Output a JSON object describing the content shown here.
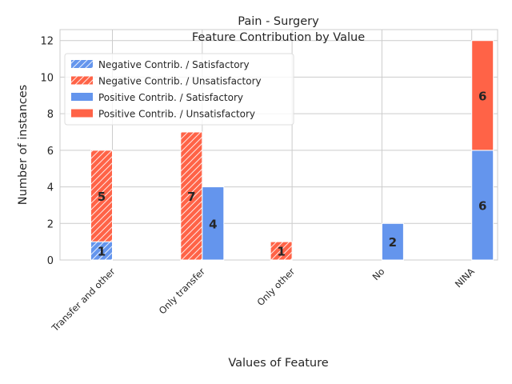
{
  "chart_data": {
    "type": "bar",
    "title": "Pain - Surgery",
    "subtitle": "Feature Contribution by Value",
    "xlabel": "Values of Feature",
    "ylabel": "Number of instances",
    "ylim": [
      0,
      12.6
    ],
    "yticks": [
      0,
      2,
      4,
      6,
      8,
      10,
      12
    ],
    "grid": true,
    "legend_position": "top-left",
    "categories": [
      "Transfer and other",
      "Only transfer",
      "Only other",
      "No",
      "NINA"
    ],
    "series": [
      {
        "name": "Negative Contrib. / Satisfactory",
        "group": "negative",
        "stack": "bottom",
        "hatched": true,
        "color": "#6495ed",
        "values": [
          1,
          0,
          0,
          0,
          0
        ]
      },
      {
        "name": "Negative Contrib. / Unsatisfactory",
        "group": "negative",
        "stack": "top",
        "hatched": true,
        "color": "#ff6347",
        "values": [
          5,
          7,
          1,
          0,
          0
        ]
      },
      {
        "name": "Positive Contrib. / Satisfactory",
        "group": "positive",
        "stack": "bottom",
        "hatched": false,
        "color": "#6495ed",
        "values": [
          0,
          4,
          0,
          2,
          6
        ]
      },
      {
        "name": "Positive Contrib. / Unsatisfactory",
        "group": "positive",
        "stack": "top",
        "hatched": false,
        "color": "#ff6347",
        "values": [
          0,
          0,
          0,
          0,
          6
        ]
      }
    ]
  }
}
